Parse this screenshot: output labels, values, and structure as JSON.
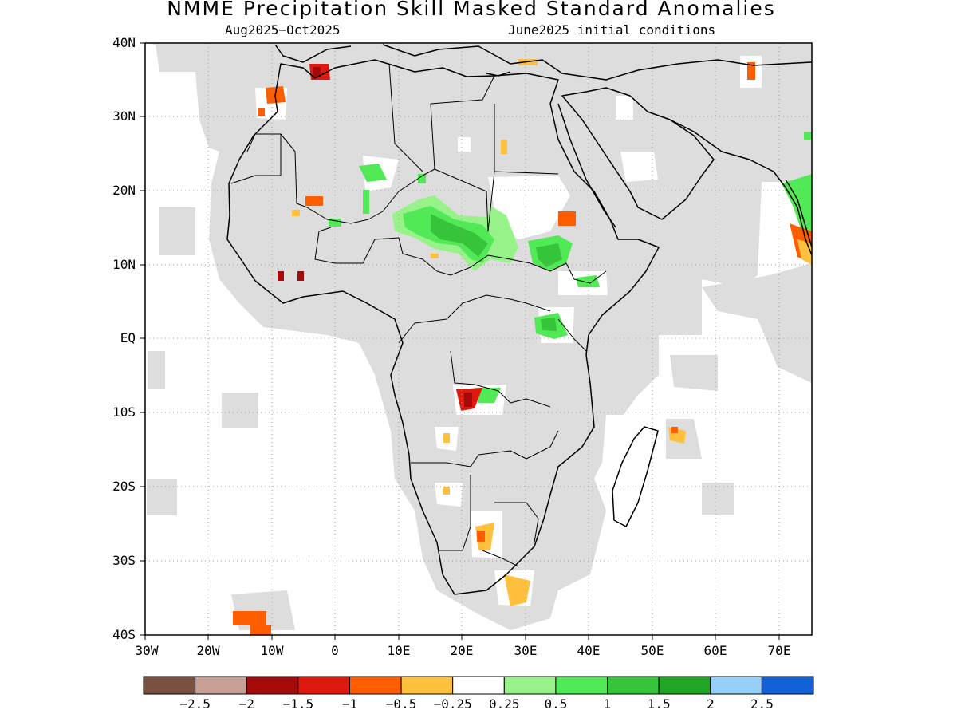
{
  "title": "NMME Precipitation Skill Masked Standard Anomalies",
  "subtitle_left": "Aug2025−Oct2025",
  "subtitle_right": "June2025 initial conditions",
  "lat_labels": [
    "40N",
    "30N",
    "20N",
    "10N",
    "EQ",
    "10S",
    "20S",
    "30S",
    "40S"
  ],
  "lon_labels": [
    "30W",
    "20W",
    "10W",
    "0",
    "10E",
    "20E",
    "30E",
    "40E",
    "50E",
    "60E",
    "70E"
  ],
  "colorbar": {
    "colors": [
      "#7a5040",
      "#c9a095",
      "#a50a0a",
      "#dd1a0d",
      "#ff5e00",
      "#ffc03d",
      "#ffffff",
      "#98f28a",
      "#52e957",
      "#36c43b",
      "#20a624",
      "#96d0fa",
      "#1262d7"
    ],
    "labels": [
      "−2.5",
      "−2",
      "−1.5",
      "−1",
      "−0.5",
      "−0.25",
      "0.25",
      "0.5",
      "1",
      "1.5",
      "2",
      "2.5"
    ]
  },
  "colors": {
    "masked_gray": "#dddddd",
    "coast": "#000000",
    "grid": "#999999"
  }
}
